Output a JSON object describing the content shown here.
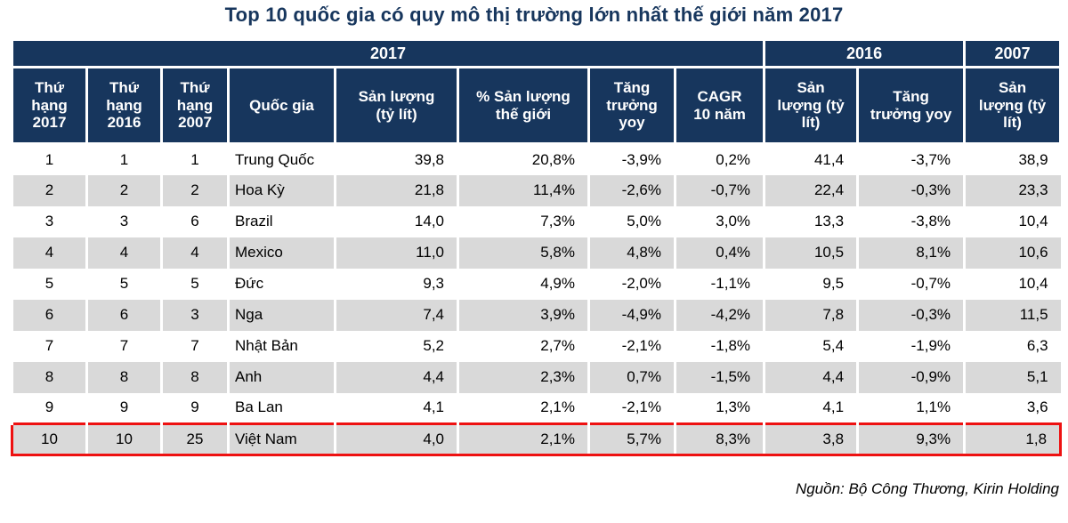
{
  "colors": {
    "title_color": "#17365d",
    "header_bg": "#17365d",
    "header_text": "#ffffff",
    "stripe_bg": "#d9d9d9",
    "highlight_border": "#ee1111",
    "body_text": "#000000"
  },
  "chart_data": {
    "type": "table",
    "title": "Top 10 quốc gia có quy mô thị trường lớn nhất thế giới năm 2017",
    "source": "Nguồn: Bộ Công Thương, Kirin Holding",
    "group_headers": [
      {
        "label": "2017",
        "span": 8
      },
      {
        "label": "2016",
        "span": 2
      },
      {
        "label": "2007",
        "span": 1
      }
    ],
    "columns": [
      "Thứ hạng 2017",
      "Thứ hạng 2016",
      "Thứ hạng 2007",
      "Quốc gia",
      "Sản lượng (tỷ lít)",
      "% Sản lượng thế giới",
      "Tăng trưởng yoy",
      "CAGR 10 năm",
      "Sản lượng (tỷ lít)",
      "Tăng trưởng yoy",
      "Sản lượng (tỷ lít)"
    ],
    "rows": [
      {
        "highlight": false,
        "cells": [
          "1",
          "1",
          "1",
          "Trung Quốc",
          "39,8",
          "20,8%",
          "-3,9%",
          "0,2%",
          "41,4",
          "-3,7%",
          "38,9"
        ]
      },
      {
        "highlight": false,
        "cells": [
          "2",
          "2",
          "2",
          "Hoa Kỳ",
          "21,8",
          "11,4%",
          "-2,6%",
          "-0,7%",
          "22,4",
          "-0,3%",
          "23,3"
        ]
      },
      {
        "highlight": false,
        "cells": [
          "3",
          "3",
          "6",
          "Brazil",
          "14,0",
          "7,3%",
          "5,0%",
          "3,0%",
          "13,3",
          "-3,8%",
          "10,4"
        ]
      },
      {
        "highlight": false,
        "cells": [
          "4",
          "4",
          "4",
          "Mexico",
          "11,0",
          "5,8%",
          "4,8%",
          "0,4%",
          "10,5",
          "8,1%",
          "10,6"
        ]
      },
      {
        "highlight": false,
        "cells": [
          "5",
          "5",
          "5",
          "Đức",
          "9,3",
          "4,9%",
          "-2,0%",
          "-1,1%",
          "9,5",
          "-0,7%",
          "10,4"
        ]
      },
      {
        "highlight": false,
        "cells": [
          "6",
          "6",
          "3",
          "Nga",
          "7,4",
          "3,9%",
          "-4,9%",
          "-4,2%",
          "7,8",
          "-0,3%",
          "11,5"
        ]
      },
      {
        "highlight": false,
        "cells": [
          "7",
          "7",
          "7",
          "Nhật Bản",
          "5,2",
          "2,7%",
          "-2,1%",
          "-1,8%",
          "5,4",
          "-1,9%",
          "6,3"
        ]
      },
      {
        "highlight": false,
        "cells": [
          "8",
          "8",
          "8",
          "Anh",
          "4,4",
          "2,3%",
          "0,7%",
          "-1,5%",
          "4,4",
          "-0,9%",
          "5,1"
        ]
      },
      {
        "highlight": false,
        "cells": [
          "9",
          "9",
          "9",
          "Ba Lan",
          "4,1",
          "2,1%",
          "-2,1%",
          "1,3%",
          "4,1",
          "1,1%",
          "3,6"
        ]
      },
      {
        "highlight": true,
        "cells": [
          "10",
          "10",
          "25",
          "Việt Nam",
          "4,0",
          "2,1%",
          "5,7%",
          "8,3%",
          "3,8",
          "9,3%",
          "1,8"
        ]
      }
    ]
  }
}
